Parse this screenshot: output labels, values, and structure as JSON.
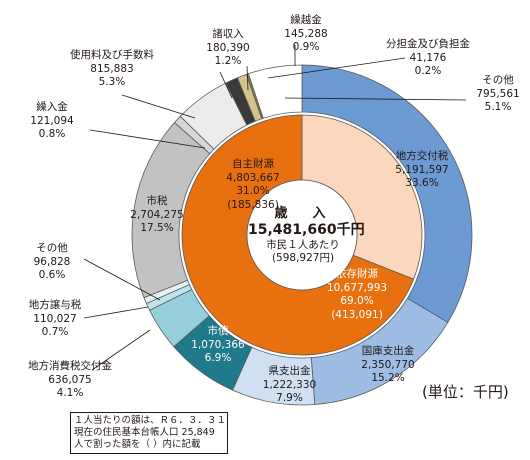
{
  "chart_data": {
    "type": "pie",
    "title": "歳　入",
    "total": "15,481,660千円",
    "per_capita_label": "市民１人あたり",
    "per_capita": "(598,927円)",
    "unit": "(単位：千円)",
    "inner_ring": [
      {
        "name": "自主財源",
        "value": "4,803,667",
        "percent": "31.0%",
        "per_capita": "(185,836)",
        "share": 31.0,
        "color": "#fbd8bd"
      },
      {
        "name": "依存財源",
        "value": "10,677,993",
        "percent": "69.0%",
        "per_capita": "(413,091)",
        "share": 69.0,
        "color": "#e8700e"
      }
    ],
    "outer_ring": [
      {
        "name": "地方交付税",
        "value": "5,191,597",
        "percent": "33.6%",
        "share": 33.6,
        "color": "#6c9ad3"
      },
      {
        "name": "国庫支出金",
        "value": "2,350,770",
        "percent": "15.2%",
        "share": 15.2,
        "color": "#9ebde5"
      },
      {
        "name": "県支出金",
        "value": "1,222,330",
        "percent": "7.9%",
        "share": 7.9,
        "color": "#cfe0f3"
      },
      {
        "name": "市債",
        "value": "1,070,366",
        "percent": "6.9%",
        "share": 6.9,
        "color": "#1f7a8c"
      },
      {
        "name": "地方消費税交付金",
        "value": "636,075",
        "percent": "4.1%",
        "share": 4.1,
        "color": "#95cfdb"
      },
      {
        "name": "地方譲与税",
        "value": "110,027",
        "percent": "0.7%",
        "share": 0.7,
        "color": "#bfe3ea"
      },
      {
        "name": "その他",
        "value": "96,828",
        "percent": "0.6%",
        "share": 0.6,
        "color": "#e3f2f5"
      },
      {
        "name": "市税",
        "value": "2,704,275",
        "percent": "17.5%",
        "share": 17.5,
        "color": "#c2c2c2"
      },
      {
        "name": "繰入金",
        "value": "121,094",
        "percent": "0.8%",
        "share": 0.8,
        "color": "#d6d6d6"
      },
      {
        "name": "使用料及び手数料",
        "value": "815,883",
        "percent": "5.3%",
        "share": 5.3,
        "color": "#ececec"
      },
      {
        "name": "諸収入",
        "value": "180,390",
        "percent": "1.2%",
        "share": 1.2,
        "color": "#3a3a3a"
      },
      {
        "name": "繰越金",
        "value": "145,288",
        "percent": "0.9%",
        "share": 0.9,
        "color": "#d4c48a"
      },
      {
        "name": "分担金及び負担金",
        "value": "41,176",
        "percent": "0.2%",
        "share": 0.2,
        "color": "#8a7a4a"
      },
      {
        "name": "その他",
        "value": "795,561",
        "percent": "5.1%",
        "share": 5.1,
        "color": "#ffffff"
      }
    ],
    "note": [
      "１人当たりの額は、Ｒ６．３．３１",
      "現在の住民基本台帳人口 25,849",
      "人で割った額を（ ）内に記載"
    ]
  }
}
